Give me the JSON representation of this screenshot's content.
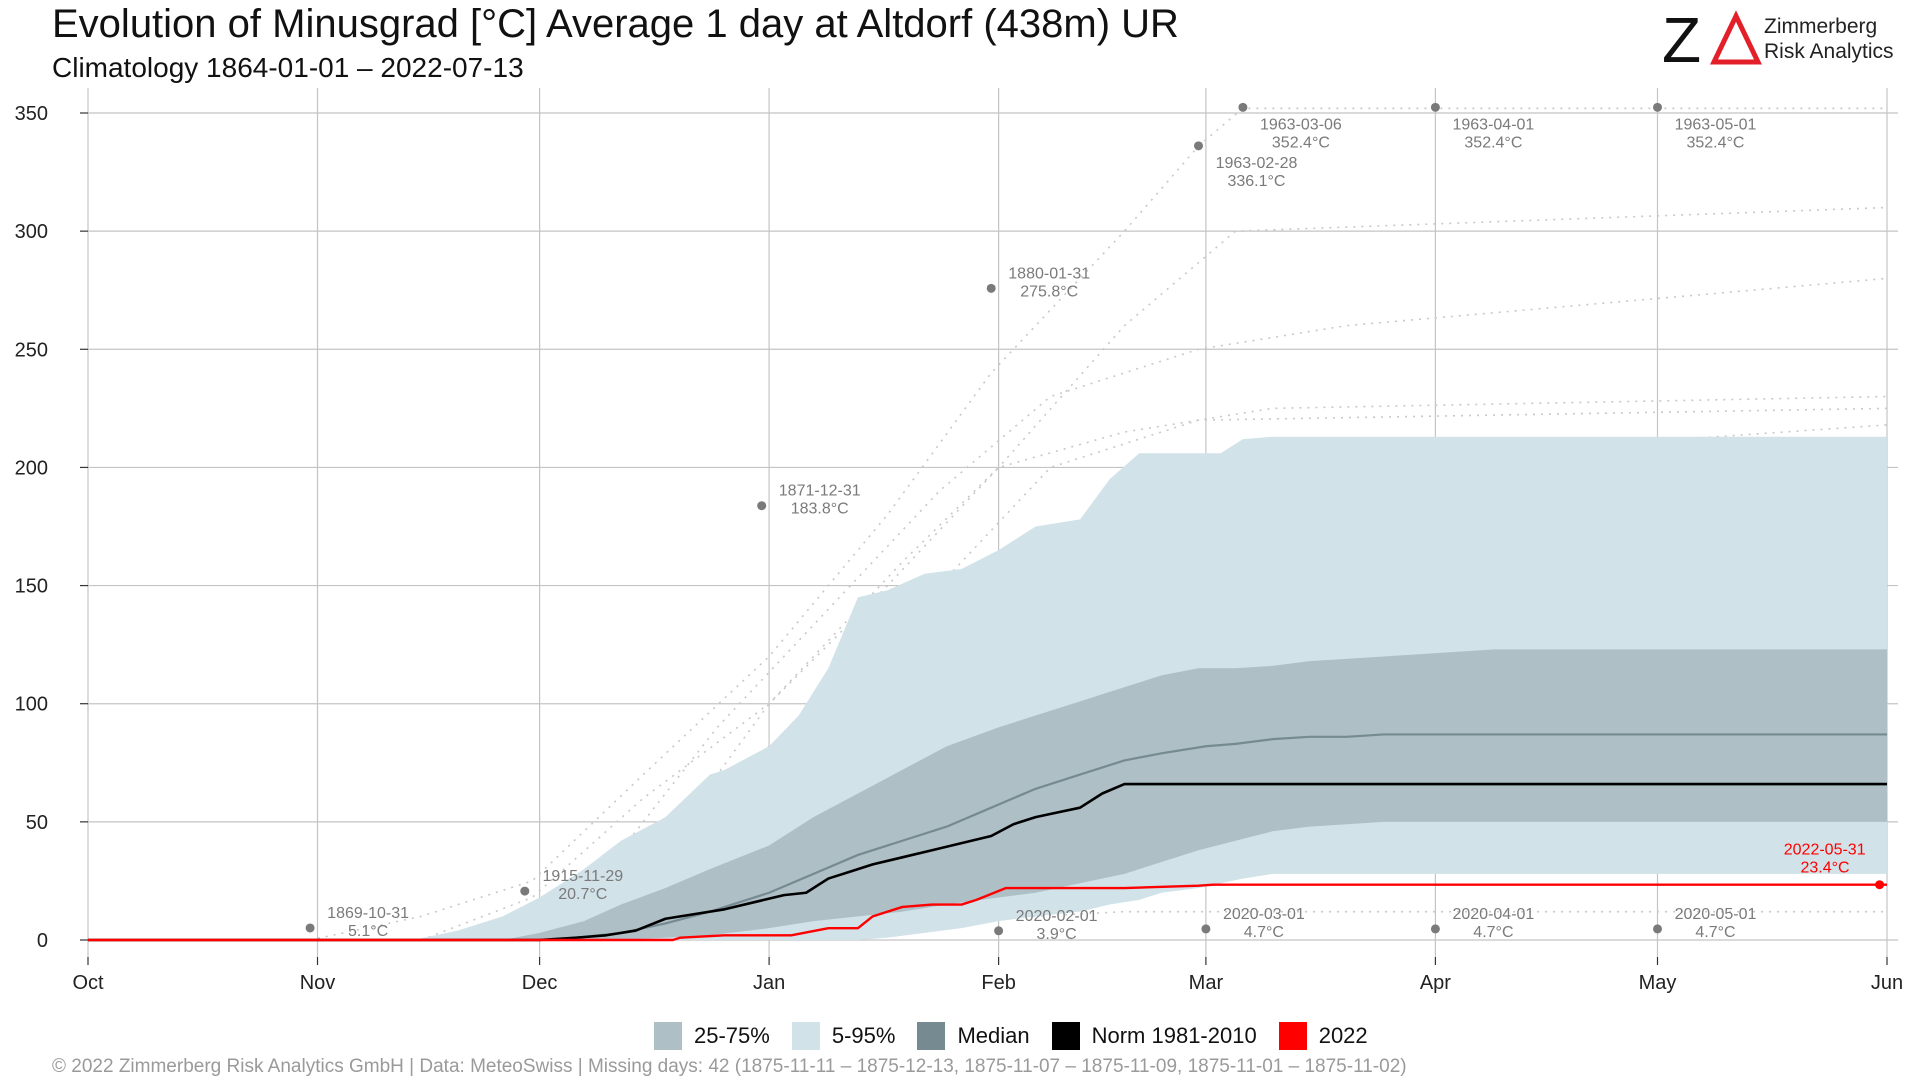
{
  "header": {
    "title": "Evolution of Minusgrad [°C] Average 1 day at Altdorf (438m) UR",
    "subtitle": "Climatology 1864-01-01 – 2022-07-13"
  },
  "logo": {
    "mark": "ZΔ",
    "line1": "Zimmerberg",
    "line2": "Risk Analytics",
    "mark_color_z": "#111111",
    "mark_color_delta": "#e3202a"
  },
  "legend": {
    "items": [
      {
        "label": "25-75%",
        "color": "#aebfc6"
      },
      {
        "label": "5-95%",
        "color": "#d1e2e9"
      },
      {
        "label": "Median",
        "color": "#768a91"
      },
      {
        "label": "Norm 1981-2010",
        "color": "#000000"
      },
      {
        "label": "2022",
        "color": "#ff0000"
      }
    ]
  },
  "footer": "©  2022 Zimmerberg Risk Analytics GmbH | Data: MeteoSwiss | Missing days: 42 (1875-11-11 – 1875-12-13, 1875-11-07 – 1875-11-09, 1875-11-01 – 1875-11-02)",
  "chart_data": {
    "type": "area",
    "title": "Evolution of Minusgrad [°C] Average 1 day at Altdorf (438m) UR",
    "xlabel": "",
    "ylabel": "",
    "grid": true,
    "x_unit": "days since 1 Oct",
    "xlim": [
      0,
      243
    ],
    "ylim": [
      -5,
      360
    ],
    "yticks": [
      0,
      50,
      100,
      150,
      200,
      250,
      300,
      350
    ],
    "xticks": [
      {
        "label": "Oct",
        "x": 0
      },
      {
        "label": "Nov",
        "x": 31
      },
      {
        "label": "Dec",
        "x": 61
      },
      {
        "label": "Jan",
        "x": 92
      },
      {
        "label": "Feb",
        "x": 123
      },
      {
        "label": "Mar",
        "x": 151
      },
      {
        "label": "Apr",
        "x": 182
      },
      {
        "label": "May",
        "x": 212
      },
      {
        "label": "Jun",
        "x": 243
      }
    ],
    "colors": {
      "p5_95": "#d1e2e9",
      "p25_75": "#aebfc6",
      "median": "#768a91",
      "norm": "#000000",
      "y2022": "#ff0000",
      "records": "#7a7a7a",
      "history": "#c8c8c8"
    },
    "band_5_95": {
      "x": [
        0,
        44,
        50,
        56,
        61,
        67,
        72,
        78,
        84,
        86,
        92,
        96,
        100,
        104,
        108,
        113,
        118,
        123,
        128,
        134,
        138,
        142,
        145,
        150,
        153,
        156,
        160,
        243
      ],
      "low": [
        0,
        0,
        0,
        0,
        0,
        0,
        0,
        0,
        0,
        0,
        0,
        0,
        0,
        0,
        1,
        3,
        5,
        8,
        10,
        12,
        15,
        17,
        20,
        22,
        24,
        26,
        28,
        28
      ],
      "high": [
        0,
        0,
        4,
        10,
        18,
        30,
        42,
        52,
        70,
        72,
        82,
        95,
        115,
        145,
        148,
        155,
        157,
        165,
        175,
        178,
        195,
        206,
        206,
        206,
        206,
        212,
        213,
        213
      ]
    },
    "band_25_75": {
      "x": [
        0,
        56,
        61,
        67,
        72,
        78,
        84,
        92,
        98,
        104,
        110,
        116,
        123,
        128,
        134,
        140,
        145,
        150,
        155,
        160,
        165,
        170,
        175,
        180,
        185,
        190,
        243
      ],
      "low": [
        0,
        0,
        0,
        0,
        0,
        1,
        2,
        5,
        8,
        10,
        12,
        15,
        18,
        20,
        24,
        28,
        33,
        38,
        42,
        46,
        48,
        49,
        50,
        50,
        50,
        50,
        50
      ],
      "high": [
        0,
        0,
        3,
        8,
        15,
        22,
        30,
        40,
        52,
        62,
        72,
        82,
        90,
        95,
        101,
        107,
        112,
        115,
        115,
        116,
        118,
        119,
        120,
        121,
        122,
        123,
        123
      ]
    },
    "series": [
      {
        "name": "Median",
        "x": [
          0,
          61,
          66,
          72,
          78,
          84,
          92,
          98,
          104,
          110,
          116,
          122,
          128,
          134,
          140,
          145,
          151,
          155,
          160,
          165,
          170,
          175,
          180,
          243
        ],
        "y": [
          0,
          0,
          1,
          3,
          7,
          12,
          20,
          28,
          36,
          42,
          48,
          56,
          64,
          70,
          76,
          79,
          82,
          83,
          85,
          86,
          86,
          87,
          87,
          87
        ]
      },
      {
        "name": "Norm 1981-2010",
        "x": [
          0,
          61,
          66,
          70,
          74,
          78,
          82,
          86,
          90,
          94,
          97,
          100,
          103,
          106,
          110,
          114,
          118,
          122,
          125,
          128,
          131,
          134,
          137,
          140,
          243
        ],
        "y": [
          0,
          0,
          1,
          2,
          4,
          9,
          11,
          13,
          16,
          19,
          20,
          26,
          29,
          32,
          35,
          38,
          41,
          44,
          49,
          52,
          54,
          56,
          62,
          66,
          66
        ]
      },
      {
        "name": "2022",
        "x": [
          0,
          79,
          80,
          86,
          95,
          100,
          104,
          106,
          110,
          114,
          118,
          120,
          124,
          130,
          140,
          150,
          152,
          243
        ],
        "y": [
          0,
          0,
          1,
          2,
          2,
          5,
          5,
          10,
          14,
          15,
          15,
          17,
          22,
          22,
          22,
          23,
          23.4,
          23.4
        ]
      }
    ],
    "annotations": [
      {
        "x": 30,
        "y": 5.1,
        "date": "1869-10-31",
        "value": "5.1°C",
        "color": "#7a7a7a"
      },
      {
        "x": 59,
        "y": 20.7,
        "date": "1915-11-29",
        "value": "20.7°C",
        "color": "#7a7a7a"
      },
      {
        "x": 91,
        "y": 183.8,
        "date": "1871-12-31",
        "value": "183.8°C",
        "color": "#7a7a7a"
      },
      {
        "x": 122,
        "y": 275.8,
        "date": "1880-01-31",
        "value": "275.8°C",
        "color": "#7a7a7a"
      },
      {
        "x": 150,
        "y": 336.1,
        "date": "1963-02-28",
        "value": "336.1°C",
        "color": "#7a7a7a"
      },
      {
        "x": 156,
        "y": 352.4,
        "date": "1963-03-06",
        "value": "352.4°C",
        "color": "#7a7a7a"
      },
      {
        "x": 182,
        "y": 352.4,
        "date": "1963-04-01",
        "value": "352.4°C",
        "color": "#7a7a7a"
      },
      {
        "x": 212,
        "y": 352.4,
        "date": "1963-05-01",
        "value": "352.4°C",
        "color": "#7a7a7a"
      },
      {
        "x": 123,
        "y": 3.9,
        "date": "2020-02-01",
        "value": "3.9°C",
        "color": "#7a7a7a"
      },
      {
        "x": 151,
        "y": 4.7,
        "date": "2020-03-01",
        "value": "4.7°C",
        "color": "#7a7a7a"
      },
      {
        "x": 182,
        "y": 4.7,
        "date": "2020-04-01",
        "value": "4.7°C",
        "color": "#7a7a7a"
      },
      {
        "x": 212,
        "y": 4.7,
        "date": "2020-05-01",
        "value": "4.7°C",
        "color": "#7a7a7a"
      },
      {
        "x": 242,
        "y": 23.4,
        "date": "2022-05-31",
        "value": "23.4°C",
        "color": "#ff0000"
      }
    ],
    "history_traces": [
      {
        "x": [
          30,
          45,
          60,
          75,
          92,
          108,
          122,
          140,
          150,
          156,
          243
        ],
        "y": [
          0,
          10,
          25,
          70,
          120,
          180,
          240,
          300,
          336,
          352,
          352
        ]
      },
      {
        "x": [
          45,
          60,
          75,
          92,
          110,
          123,
          140,
          155,
          243
        ],
        "y": [
          0,
          18,
          60,
          100,
          160,
          200,
          260,
          300,
          310
        ]
      },
      {
        "x": [
          55,
          70,
          85,
          100,
          115,
          130,
          150,
          170,
          243
        ],
        "y": [
          0,
          30,
          90,
          140,
          190,
          230,
          250,
          260,
          280
        ]
      },
      {
        "x": [
          60,
          78,
          92,
          108,
          123,
          140,
          160,
          243
        ],
        "y": [
          0,
          40,
          100,
          150,
          200,
          215,
          225,
          230
        ]
      },
      {
        "x": [
          65,
          80,
          95,
          115,
          130,
          150,
          243
        ],
        "y": [
          0,
          30,
          80,
          150,
          200,
          220,
          225
        ]
      },
      {
        "x": [
          70,
          85,
          100,
          120,
          140,
          160,
          243
        ],
        "y": [
          0,
          25,
          60,
          110,
          160,
          200,
          218
        ]
      },
      {
        "x": [
          72,
          90,
          105,
          125,
          145,
          165,
          243
        ],
        "y": [
          0,
          20,
          45,
          90,
          140,
          170,
          175
        ]
      },
      {
        "x": [
          62,
          80,
          98,
          118,
          138,
          158,
          243
        ],
        "y": [
          0,
          35,
          75,
          125,
          170,
          190,
          195
        ]
      },
      {
        "x": [
          80,
          100,
          120,
          140,
          160,
          243
        ],
        "y": [
          0,
          20,
          45,
          70,
          85,
          90
        ]
      },
      {
        "x": [
          85,
          110,
          130,
          150,
          243
        ],
        "y": [
          0,
          15,
          30,
          40,
          40
        ]
      },
      {
        "x": [
          90,
          115,
          140,
          243
        ],
        "y": [
          0,
          8,
          12,
          12
        ]
      },
      {
        "x": [
          58,
          75,
          92,
          112,
          132,
          152,
          243
        ],
        "y": [
          0,
          28,
          82,
          135,
          150,
          155,
          160
        ]
      }
    ]
  }
}
